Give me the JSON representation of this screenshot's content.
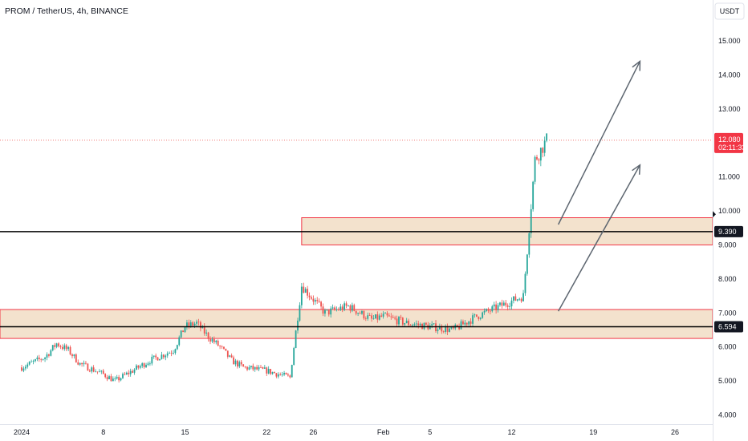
{
  "header": {
    "title": "PROM / TetherUS, 4h, BINANCE"
  },
  "price_axis": {
    "currency": "USDT"
  },
  "last_price": {
    "value": "12.080",
    "countdown": "02:11:33",
    "color": "#f23645"
  },
  "colors": {
    "zone_fill": "#f3e2cd",
    "zone_border": "#f23645",
    "up_candle": "#26a69a",
    "down_candle": "#ef5350",
    "level_line": "#000000",
    "arrow": "#5d6670"
  },
  "chart_data": {
    "type": "candlestick",
    "title": "PROM / TetherUS, 4h, BINANCE",
    "x_ticks": [
      "2024",
      "8",
      "15",
      "22",
      "26",
      "Feb",
      "5",
      "12",
      "19",
      "26"
    ],
    "y_ticks": [
      "15.000",
      "14.000",
      "13.000",
      "12.000",
      "11.000",
      "10.000",
      "9.000",
      "8.000",
      "7.000",
      "6.000",
      "5.000",
      "4.000"
    ],
    "ylim": [
      3.65,
      15.65
    ],
    "horizontal_levels": [
      {
        "label": "9.390",
        "value": 9.39
      },
      {
        "label": "6.594",
        "value": 6.594
      }
    ],
    "zones": [
      {
        "from": 9.0,
        "to": 9.8
      },
      {
        "from": 6.25,
        "to": 7.1
      }
    ],
    "close_path": [
      {
        "date": "2024-01-01",
        "close": 5.4
      },
      {
        "date": "2024-01-03",
        "close": 5.7
      },
      {
        "date": "2024-01-04",
        "close": 6.1
      },
      {
        "date": "2024-01-05",
        "close": 5.9
      },
      {
        "date": "2024-01-06",
        "close": 5.5
      },
      {
        "date": "2024-01-08",
        "close": 5.2
      },
      {
        "date": "2024-01-09",
        "close": 5.0
      },
      {
        "date": "2024-01-10",
        "close": 5.2
      },
      {
        "date": "2024-01-12",
        "close": 5.6
      },
      {
        "date": "2024-01-14",
        "close": 5.9
      },
      {
        "date": "2024-01-15",
        "close": 6.6
      },
      {
        "date": "2024-01-16",
        "close": 6.7
      },
      {
        "date": "2024-01-17",
        "close": 6.3
      },
      {
        "date": "2024-01-18",
        "close": 6.0
      },
      {
        "date": "2024-01-19",
        "close": 5.6
      },
      {
        "date": "2024-01-20",
        "close": 5.4
      },
      {
        "date": "2024-01-22",
        "close": 5.3
      },
      {
        "date": "2024-01-24",
        "close": 5.1
      },
      {
        "date": "2024-01-25",
        "close": 7.8
      },
      {
        "date": "2024-01-26",
        "close": 7.4
      },
      {
        "date": "2024-01-27",
        "close": 7.0
      },
      {
        "date": "2024-01-29",
        "close": 7.2
      },
      {
        "date": "2024-01-31",
        "close": 6.8
      },
      {
        "date": "2024-02-01",
        "close": 6.9
      },
      {
        "date": "2024-02-03",
        "close": 6.7
      },
      {
        "date": "2024-02-05",
        "close": 6.6
      },
      {
        "date": "2024-02-07",
        "close": 6.5
      },
      {
        "date": "2024-02-09",
        "close": 6.9
      },
      {
        "date": "2024-02-11",
        "close": 7.2
      },
      {
        "date": "2024-02-13",
        "close": 7.5
      },
      {
        "date": "2024-02-14",
        "close": 11.5
      },
      {
        "date": "2024-02-15",
        "close": 12.08
      }
    ],
    "x_range": [
      "2023-12-31",
      "2024-03-01"
    ],
    "projection_arrows": [
      {
        "from": {
          "date": "2024-02-16",
          "price": 9.6
        },
        "to": {
          "date": "2024-02-23",
          "price": 14.4
        }
      },
      {
        "from": {
          "date": "2024-02-16",
          "price": 7.05
        },
        "to": {
          "date": "2024-02-23",
          "price": 11.35
        }
      }
    ]
  }
}
